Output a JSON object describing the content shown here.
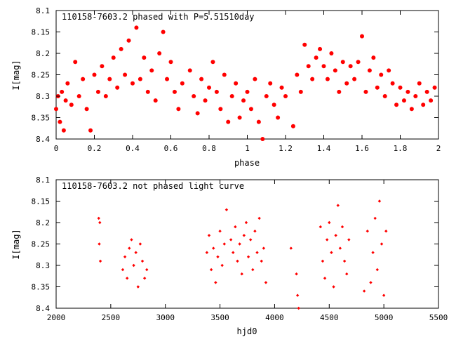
{
  "colors": {
    "points": "#ff0000",
    "axes": "#000000",
    "background": "#ffffff"
  },
  "chart_data": [
    {
      "type": "scatter",
      "title": "110158-7603.2 phased with P=5.51510day",
      "xlabel": "phase",
      "ylabel": "I[mag]",
      "xlim": [
        0,
        2
      ],
      "ylim": [
        8.4,
        8.1
      ],
      "y_inverted": true,
      "x_ticks": [
        "0",
        "0.2",
        "0.4",
        "0.6",
        "0.8",
        "1",
        "1.2",
        "1.4",
        "1.6",
        "1.8",
        "2"
      ],
      "y_ticks": [
        "8.1",
        "8.15",
        "8.2",
        "8.25",
        "8.3",
        "8.35",
        "8.4"
      ],
      "grid": false,
      "marker": "filled-circle",
      "series": [
        {
          "x": [
            0.0,
            0.01,
            0.02,
            0.03,
            0.04,
            0.05,
            0.06,
            0.08,
            0.1,
            0.12,
            0.14,
            0.16,
            0.18,
            0.2,
            0.22,
            0.24,
            0.26,
            0.28,
            0.3,
            0.32,
            0.34,
            0.36,
            0.38,
            0.4,
            0.42,
            0.44,
            0.46,
            0.48,
            0.5,
            0.52,
            0.54,
            0.56,
            0.58,
            0.6,
            0.62,
            0.64,
            0.66,
            0.7,
            0.72,
            0.74,
            0.76,
            0.78,
            0.8,
            0.82,
            0.84,
            0.86,
            0.88,
            0.9,
            0.92,
            0.94,
            0.96,
            0.98,
            1.0,
            1.02,
            1.04,
            1.06,
            1.08,
            1.1,
            1.12,
            1.14,
            1.16,
            1.18,
            1.2,
            1.24,
            1.26,
            1.28,
            1.3,
            1.32,
            1.34,
            1.36,
            1.38,
            1.4,
            1.42,
            1.44,
            1.46,
            1.48,
            1.5,
            1.52,
            1.54,
            1.56,
            1.58,
            1.6,
            1.62,
            1.64,
            1.66,
            1.68,
            1.7,
            1.72,
            1.74,
            1.76,
            1.78,
            1.8,
            1.82,
            1.84,
            1.86,
            1.88,
            1.9,
            1.92,
            1.94,
            1.96,
            1.98
          ],
          "y": [
            8.33,
            8.3,
            8.36,
            8.29,
            8.38,
            8.31,
            8.27,
            8.32,
            8.22,
            8.3,
            8.26,
            8.33,
            8.38,
            8.25,
            8.29,
            8.23,
            8.3,
            8.26,
            8.21,
            8.28,
            8.19,
            8.25,
            8.17,
            8.27,
            8.14,
            8.26,
            8.21,
            8.29,
            8.24,
            8.31,
            8.2,
            8.15,
            8.26,
            8.22,
            8.29,
            8.33,
            8.27,
            8.24,
            8.3,
            8.34,
            8.26,
            8.31,
            8.28,
            8.22,
            8.29,
            8.33,
            8.25,
            8.36,
            8.3,
            8.27,
            8.35,
            8.31,
            8.29,
            8.33,
            8.26,
            8.36,
            8.4,
            8.3,
            8.27,
            8.32,
            8.35,
            8.28,
            8.3,
            8.37,
            8.25,
            8.29,
            8.18,
            8.23,
            8.26,
            8.21,
            8.19,
            8.23,
            8.26,
            8.2,
            8.24,
            8.29,
            8.22,
            8.27,
            8.23,
            8.26,
            8.22,
            8.16,
            8.29,
            8.24,
            8.21,
            8.28,
            8.25,
            8.3,
            8.24,
            8.27,
            8.32,
            8.28,
            8.31,
            8.29,
            8.33,
            8.3,
            8.27,
            8.32,
            8.29,
            8.31,
            8.28
          ]
        }
      ]
    },
    {
      "type": "scatter",
      "title": "110158-7603.2 not phased light curve",
      "xlabel": "hjd0",
      "ylabel": "I[mag]",
      "xlim": [
        2000,
        5500
      ],
      "ylim": [
        8.4,
        8.1
      ],
      "y_inverted": true,
      "x_ticks": [
        "2000",
        "2500",
        "3000",
        "3500",
        "4000",
        "4500",
        "5000",
        "5500"
      ],
      "y_ticks": [
        "8.1",
        "8.15",
        "8.2",
        "8.25",
        "8.3",
        "8.35",
        "8.4"
      ],
      "grid": false,
      "marker": "small-diamond",
      "series": [
        {
          "x": [
            2390,
            2395,
            2400,
            2405,
            2610,
            2630,
            2650,
            2670,
            2690,
            2710,
            2730,
            2750,
            2770,
            2790,
            2810,
            2830,
            3380,
            3400,
            3420,
            3440,
            3460,
            3480,
            3500,
            3520,
            3540,
            3560,
            3600,
            3620,
            3640,
            3660,
            3680,
            3700,
            3720,
            3740,
            3760,
            3780,
            3800,
            3820,
            3840,
            3860,
            3880,
            3900,
            3920,
            4150,
            4200,
            4210,
            4220,
            4420,
            4440,
            4460,
            4480,
            4500,
            4520,
            4540,
            4560,
            4580,
            4600,
            4620,
            4640,
            4660,
            4680,
            4820,
            4850,
            4880,
            4900,
            4920,
            4940,
            4960,
            4980,
            5000,
            5020
          ],
          "y": [
            8.19,
            8.25,
            8.2,
            8.29,
            8.31,
            8.28,
            8.33,
            8.26,
            8.24,
            8.3,
            8.27,
            8.35,
            8.25,
            8.29,
            8.33,
            8.31,
            8.27,
            8.23,
            8.31,
            8.26,
            8.34,
            8.28,
            8.22,
            8.3,
            8.25,
            8.17,
            8.24,
            8.27,
            8.21,
            8.29,
            8.25,
            8.32,
            8.23,
            8.2,
            8.28,
            8.24,
            8.31,
            8.22,
            8.27,
            8.19,
            8.29,
            8.26,
            8.34,
            8.26,
            8.32,
            8.37,
            8.4,
            8.21,
            8.29,
            8.33,
            8.24,
            8.2,
            8.27,
            8.35,
            8.23,
            8.16,
            8.26,
            8.21,
            8.29,
            8.32,
            8.24,
            8.36,
            8.22,
            8.34,
            8.27,
            8.19,
            8.31,
            8.15,
            8.25,
            8.37,
            8.22
          ]
        }
      ]
    }
  ]
}
